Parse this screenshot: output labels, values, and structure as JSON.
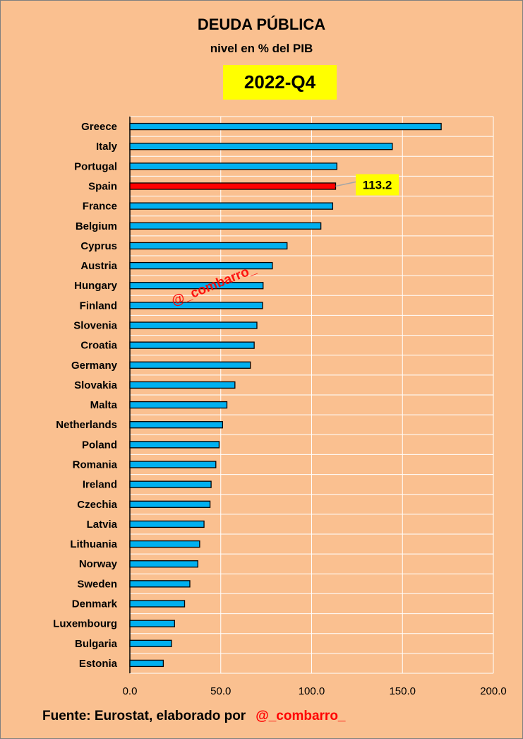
{
  "header": {
    "title": "DEUDA PÚBLICA",
    "subtitle": "nivel en % del PIB",
    "period": "2022-Q4"
  },
  "footer": {
    "source": "Fuente: Eurostat, elaborado por",
    "handle": "@_combarro_"
  },
  "watermark": "@_combarro_",
  "colors": {
    "background": "#fac090",
    "bar": "#00b0f0",
    "highlight": "#ff0000",
    "label_box": "#ffff00",
    "gridline": "#ffffff"
  },
  "chart_data": {
    "type": "bar",
    "orientation": "horizontal",
    "title": "DEUDA PÚBLICA",
    "subtitle": "nivel en % del PIB",
    "categories": [
      "Greece",
      "Italy",
      "Portugal",
      "Spain",
      "France",
      "Belgium",
      "Cyprus",
      "Austria",
      "Hungary",
      "Finland",
      "Slovenia",
      "Croatia",
      "Germany",
      "Slovakia",
      "Malta",
      "Netherlands",
      "Poland",
      "Romania",
      "Ireland",
      "Czechia",
      "Latvia",
      "Lithuania",
      "Norway",
      "Sweden",
      "Denmark",
      "Luxembourg",
      "Bulgaria",
      "Estonia"
    ],
    "values": [
      171.3,
      144.4,
      113.9,
      113.2,
      111.6,
      105.1,
      86.5,
      78.4,
      73.3,
      73.0,
      69.9,
      68.4,
      66.3,
      57.8,
      53.4,
      51.0,
      49.1,
      47.3,
      44.7,
      44.1,
      40.8,
      38.4,
      37.4,
      33.0,
      30.1,
      24.6,
      22.9,
      18.4
    ],
    "highlight": "Spain",
    "data_labels": [
      {
        "category": "Spain",
        "text": "113.2"
      }
    ],
    "xlim": [
      0,
      200
    ],
    "xticks": [
      "0.0",
      "50.0",
      "100.0",
      "150.0",
      "200.0"
    ],
    "xlabel": "",
    "ylabel": "",
    "grid": "vertical"
  }
}
